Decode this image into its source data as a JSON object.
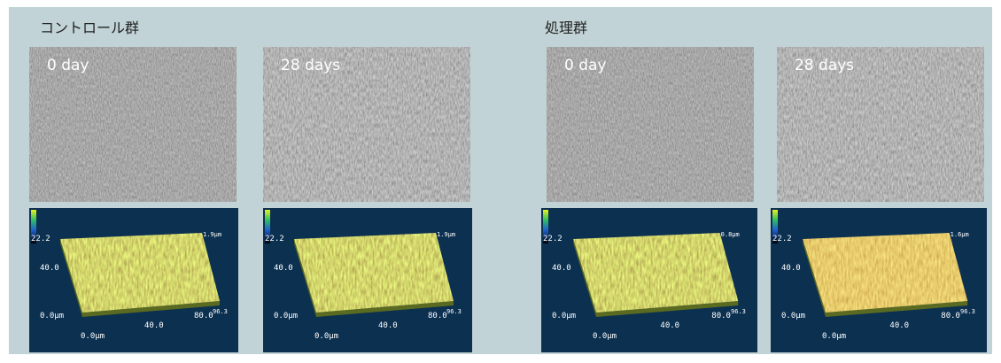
{
  "groups": [
    {
      "title": "コントロール群",
      "panels": [
        {
          "label": "0 day",
          "plot": {
            "scale": "22.2",
            "y_mid": "40.0",
            "y_origin": "0.0μm",
            "x_origin": "0.0μm",
            "x_mid": "40.0",
            "x_end": "80.0",
            "x_max": "96.3",
            "z_max": "1.9μm"
          }
        },
        {
          "label": "28 days",
          "plot": {
            "scale": "22.2",
            "y_mid": "40.0",
            "y_origin": "0.0μm",
            "x_origin": "0.0μm",
            "x_mid": "40.0",
            "x_end": "80.0",
            "x_max": "96.3",
            "z_max": "1.9μm"
          }
        }
      ]
    },
    {
      "title": "処理群",
      "panels": [
        {
          "label": "0 day",
          "plot": {
            "scale": "22.2",
            "y_mid": "40.0",
            "y_origin": "0.0μm",
            "x_origin": "0.0μm",
            "x_mid": "40.0",
            "x_end": "80.0",
            "x_max": "96.3",
            "z_max": "0.8μm"
          }
        },
        {
          "label": "28 days",
          "plot": {
            "scale": "22.2",
            "y_mid": "40.0",
            "y_origin": "0.0μm",
            "x_origin": "0.0μm",
            "x_mid": "40.0",
            "x_end": "80.0",
            "x_max": "96.3",
            "z_max": "1.6μm"
          }
        }
      ]
    }
  ]
}
